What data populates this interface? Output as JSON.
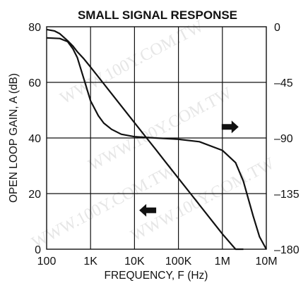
{
  "chart_data": {
    "type": "line",
    "title": "SMALL SIGNAL RESPONSE",
    "xlabel": "FREQUENCY, F (Hz)",
    "ylabel": "OPEN LOOP GAIN, A (dB)",
    "x_scale": "log",
    "xlim": [
      100,
      10000000
    ],
    "ylim": [
      0,
      80
    ],
    "y2lim": [
      -180,
      0
    ],
    "grid": true,
    "x_ticks": [
      {
        "value": 100,
        "label": "100"
      },
      {
        "value": 1000,
        "label": "1K"
      },
      {
        "value": 10000,
        "label": "10K"
      },
      {
        "value": 100000,
        "label": "100K"
      },
      {
        "value": 1000000,
        "label": "1M"
      },
      {
        "value": 10000000,
        "label": "10M"
      }
    ],
    "y_ticks": [
      {
        "value": 0,
        "label": "0"
      },
      {
        "value": 20,
        "label": "20"
      },
      {
        "value": 40,
        "label": "40"
      },
      {
        "value": 60,
        "label": "60"
      },
      {
        "value": 80,
        "label": "80"
      }
    ],
    "y2_ticks": [
      {
        "value": 0,
        "label": "0"
      },
      {
        "value": -45,
        "label": "–45"
      },
      {
        "value": -90,
        "label": "–90"
      },
      {
        "value": -135,
        "label": "–135"
      },
      {
        "value": -180,
        "label": "–180"
      }
    ],
    "series": [
      {
        "axis": "left",
        "x": [
          100,
          150,
          200,
          300,
          400,
          500,
          700,
          1000,
          2000,
          5000,
          10000,
          20000,
          30000,
          50000,
          100000,
          200000,
          500000,
          1000000,
          2000000,
          3000000
        ],
        "y": [
          79,
          78.5,
          77.5,
          75,
          73,
          71,
          68.5,
          65.5,
          59.5,
          51.5,
          45.5,
          39.5,
          36,
          31.5,
          25.5,
          19.5,
          11.5,
          5.5,
          0,
          0
        ]
      },
      {
        "axis": "right",
        "x": [
          100,
          200,
          300,
          400,
          500,
          700,
          1000,
          1500,
          2000,
          3000,
          5000,
          10000,
          30000,
          100000,
          300000,
          1000000,
          2000000,
          3000000,
          5000000,
          7000000,
          10000000
        ],
        "y": [
          -9,
          -9.5,
          -12,
          -18,
          -25,
          -42,
          -60,
          -72,
          -78,
          -83,
          -87,
          -89,
          -90,
          -91,
          -93,
          -100,
          -110,
          -125,
          -153,
          -170,
          -180
        ]
      }
    ],
    "arrows": [
      {
        "points_to": "right axis",
        "x": 1500000,
        "y2": -81
      },
      {
        "points_to": "left axis",
        "x": 20000,
        "y": 14
      }
    ],
    "watermark": "WWW.100Y.COM.TW",
    "colors": {
      "line": "#111111",
      "grid": "#111111",
      "watermark": "#e6e6e6"
    }
  }
}
